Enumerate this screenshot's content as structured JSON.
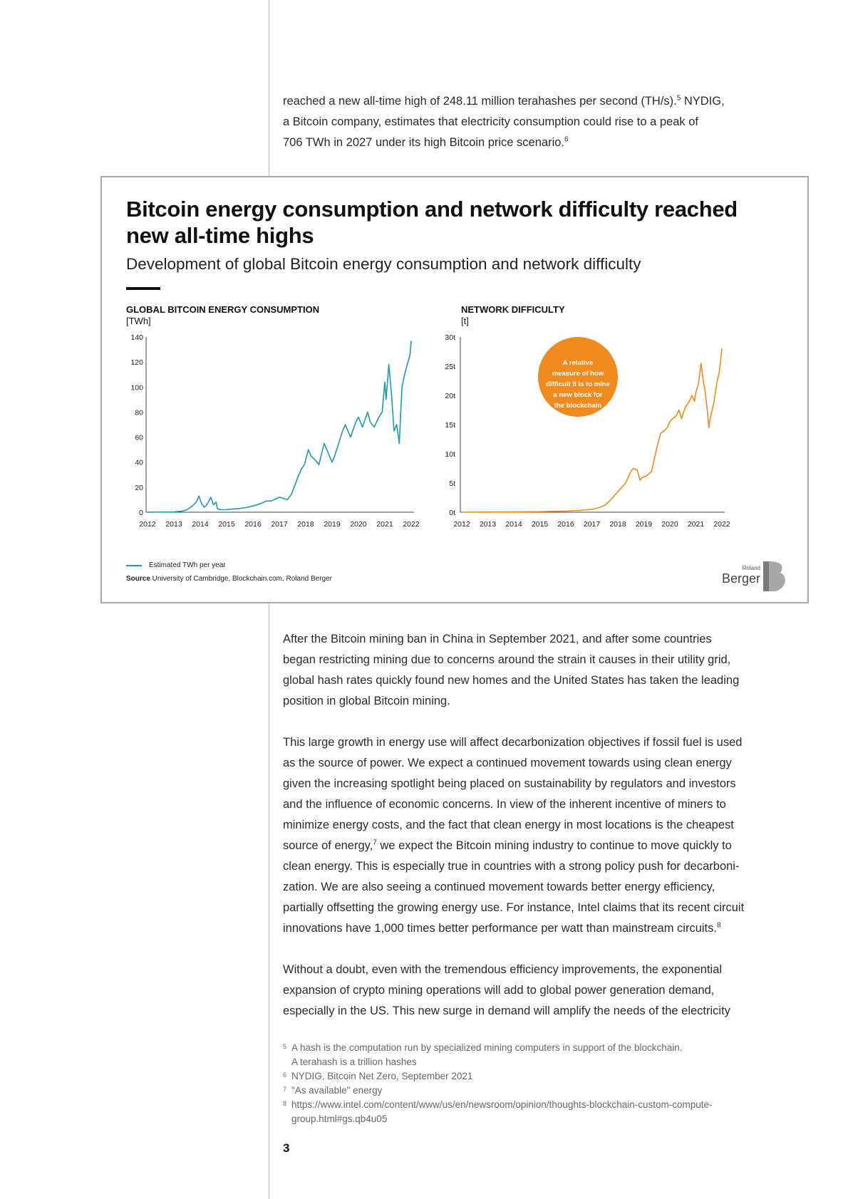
{
  "intro_paragraph": {
    "lines": [
      "reached a new all-time high of 248.11 million terahashes per second (TH/s).",
      "5",
      " NYDIG,",
      "a Bitcoin company, estimates that electricity consumption could rise to a peak of",
      "706 TWh in 2027 under its high Bitcoin price scenario.",
      "6"
    ]
  },
  "chart_box": {
    "title_line1": "Bitcoin energy consumption and network difficulty reached",
    "title_line2": "new all-time highs",
    "subtitle": "Development of global Bitcoin energy consumption and network difficulty",
    "legend_label": "Estimated TWh per year",
    "source_label": "Source",
    "source_text": " University of Cambridge, Blockchain.com, Roland Berger",
    "callout_lines": [
      "A relative",
      "measure of how",
      "difficult it is to mine",
      "a new block for",
      "the blockchain"
    ],
    "logo_small": "Roland",
    "logo_large": "Berger"
  },
  "chart_data": [
    {
      "type": "line",
      "title": "GLOBAL BITCOIN ENERGY CONSUMPTION",
      "ylabel": "[TWh]",
      "xlabel": "",
      "ylim": [
        0,
        140
      ],
      "yticks": [
        "0",
        "20",
        "40",
        "60",
        "80",
        "100",
        "120",
        "140"
      ],
      "ytick_values": [
        0,
        20,
        40,
        60,
        80,
        100,
        120,
        140
      ],
      "xticks": [
        "2012",
        "2013",
        "2014",
        "2015",
        "2016",
        "2017",
        "2018",
        "2019",
        "2020",
        "2021",
        "2022"
      ],
      "color": "#1b9ab1",
      "series": [
        {
          "name": "Estimated TWh per year",
          "x": [
            2012.0,
            2013.0,
            2013.3,
            2013.5,
            2013.7,
            2013.85,
            2013.95,
            2014.05,
            2014.15,
            2014.25,
            2014.4,
            2014.5,
            2014.6,
            2014.65,
            2014.75,
            2014.85,
            2014.95,
            2015.0,
            2015.2,
            2015.5,
            2015.8,
            2016.0,
            2016.3,
            2016.5,
            2016.7,
            2017.0,
            2017.3,
            2017.45,
            2017.6,
            2017.7,
            2017.85,
            2017.95,
            2018.1,
            2018.2,
            2018.35,
            2018.5,
            2018.7,
            2018.9,
            2019.0,
            2019.1,
            2019.25,
            2019.4,
            2019.5,
            2019.7,
            2019.9,
            2020.0,
            2020.15,
            2020.25,
            2020.35,
            2020.45,
            2020.6,
            2020.75,
            2020.9,
            2021.0,
            2021.05,
            2021.15,
            2021.25,
            2021.35,
            2021.45,
            2021.55,
            2021.65,
            2021.75,
            2021.85,
            2021.95,
            2022.0
          ],
          "values": [
            0,
            0.3,
            0.8,
            2,
            5,
            8,
            13,
            7,
            4,
            6,
            12,
            6,
            8,
            3,
            2,
            2,
            2,
            2,
            2.5,
            3,
            4,
            5,
            7,
            9,
            9,
            12,
            10,
            14,
            22,
            28,
            35,
            38,
            50,
            45,
            42,
            38,
            55,
            45,
            40,
            45,
            55,
            65,
            70,
            60,
            72,
            76,
            68,
            74,
            80,
            72,
            68,
            75,
            80,
            104,
            90,
            118,
            95,
            65,
            70,
            55,
            100,
            110,
            118,
            125,
            137
          ]
        }
      ]
    },
    {
      "type": "line",
      "title": "NETWORK DIFFICULTY",
      "ylabel": "[t]",
      "xlabel": "",
      "ylim": [
        0,
        30
      ],
      "yticks": [
        "0t",
        "5t",
        "10t",
        "15t",
        "20t",
        "25t",
        "30t"
      ],
      "ytick_values": [
        0,
        5,
        10,
        15,
        20,
        25,
        30
      ],
      "xticks": [
        "2012",
        "2013",
        "2014",
        "2015",
        "2016",
        "2017",
        "2018",
        "2019",
        "2020",
        "2021",
        "2022"
      ],
      "color": "#ef8a1e",
      "series": [
        {
          "name": "Network difficulty",
          "x": [
            2012.0,
            2014.0,
            2015.0,
            2016.0,
            2016.5,
            2017.0,
            2017.3,
            2017.5,
            2017.7,
            2017.9,
            2018.1,
            2018.3,
            2018.5,
            2018.6,
            2018.75,
            2018.85,
            2018.95,
            2019.1,
            2019.3,
            2019.45,
            2019.55,
            2019.65,
            2019.8,
            2019.9,
            2020.0,
            2020.1,
            2020.25,
            2020.35,
            2020.45,
            2020.6,
            2020.75,
            2020.85,
            2020.95,
            2021.0,
            2021.1,
            2021.2,
            2021.3,
            2021.35,
            2021.45,
            2021.5,
            2021.55,
            2021.7,
            2021.8,
            2021.9,
            2022.0
          ],
          "values": [
            0,
            0.05,
            0.1,
            0.2,
            0.3,
            0.5,
            0.8,
            1.2,
            2,
            3,
            4,
            5,
            7,
            7.5,
            7.2,
            5.5,
            6,
            6.2,
            7,
            10,
            12,
            13.5,
            14,
            14.5,
            15.5,
            16,
            16.5,
            17.5,
            16,
            18,
            19,
            20,
            19,
            20.5,
            22,
            25.5,
            22,
            21,
            17,
            14.5,
            16,
            19,
            22,
            24,
            28
          ]
        }
      ]
    }
  ],
  "body_paragraphs": [
    {
      "lines": [
        "After the Bitcoin mining ban in China in September 2021, and after some countries",
        "began restricting mining due to concerns around the strain it causes in their utility grid,",
        "global hash rates quickly found new homes and the United States has taken the leading",
        "position in global Bitcoin mining."
      ]
    },
    {
      "lines": [
        "This large growth in energy use will affect decarbonization objectives if fossil fuel is used",
        "as the source of power. We expect a continued movement towards using clean energy",
        "given the increasing spotlight being placed on sustainability by regulators and investors",
        "and the influence of economic concerns. In view of the inherent incentive of miners to",
        "minimize energy costs, and the fact that clean energy in most locations is the cheapest",
        "source of energy,",
        "7",
        " we expect the Bitcoin mining industry to continue to move quickly to",
        "clean energy. This is especially true in countries with a strong policy push for decarboni-",
        "zation. We are also seeing a continued movement towards better energy efficiency,",
        "partially offsetting the growing energy use. For instance, Intel claims that its recent circuit",
        "innovations have 1,000 times better performance per watt than mainstream circuits.",
        "8"
      ]
    },
    {
      "lines": [
        "Without a doubt, even with the tremendous efficiency improvements, the exponential",
        "expansion of crypto mining operations will add to global power generation demand,",
        "especially in the US. This new surge in demand will amplify the needs of the electricity"
      ]
    }
  ],
  "footnotes": [
    {
      "num": "5",
      "lines": [
        "A hash is the computation run by specialized mining computers in support of the blockchain.",
        "A terahash is a trillion hashes"
      ]
    },
    {
      "num": "6",
      "lines": [
        "NYDIG, Bitcoin Net Zero, September 2021"
      ]
    },
    {
      "num": "7",
      "lines": [
        "\"As available\" energy"
      ]
    },
    {
      "num": "8",
      "lines": [
        "https://www.intel.com/content/www/us/en/newsroom/opinion/thoughts-blockchain-custom-compute-",
        "group.html#gs.qb4u05"
      ]
    }
  ],
  "page_number": "3",
  "colors": {
    "teal": "#1b9ab1",
    "orange": "#ef8a1e",
    "rule": "#b9b9b9"
  }
}
